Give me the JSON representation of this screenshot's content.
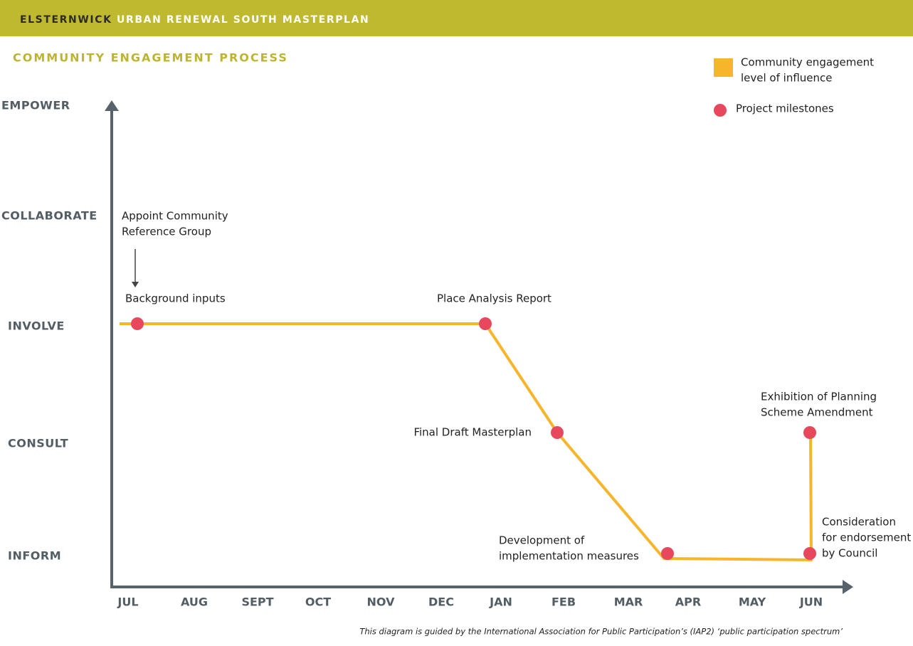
{
  "header": {
    "title_part1": "ELSTERNWICK",
    "title_part2": "URBAN RENEWAL SOUTH MASTERPLAN"
  },
  "subtitle": "COMMUNITY ENGAGEMENT PROCESS",
  "legend": [
    {
      "lines": [
        "Community engagement",
        "level of influence"
      ]
    },
    {
      "lines": [
        "Project milestones"
      ]
    }
  ],
  "levels": [
    "EMPOWER",
    "COLLABORATE",
    "INVOLVE",
    "CONSULT",
    "INFORM"
  ],
  "months": [
    "JUL",
    "AUG",
    "SEPT",
    "OCT",
    "NOV",
    "DEC",
    "JAN",
    "FEB",
    "MAR",
    "APR",
    "MAY",
    "JUN"
  ],
  "annotations": [
    {
      "lines": [
        "Appoint Community",
        "Reference Group"
      ]
    }
  ],
  "milestones": [
    {
      "lines": [
        "Background inputs"
      ]
    },
    {
      "lines": [
        "Place Analysis Report"
      ]
    },
    {
      "lines": [
        "Final Draft Masterplan"
      ]
    },
    {
      "lines": [
        "Development of",
        "implementation measures"
      ]
    },
    {
      "lines": [
        "Consideration",
        "for endorsement",
        "by Council"
      ]
    },
    {
      "lines": [
        "Exhibition of Planning",
        "Scheme Amendment"
      ]
    }
  ],
  "footnote": "This diagram is guided by the International Association for Public Participation’s (IAP2) ‘public participation spectrum’"
}
